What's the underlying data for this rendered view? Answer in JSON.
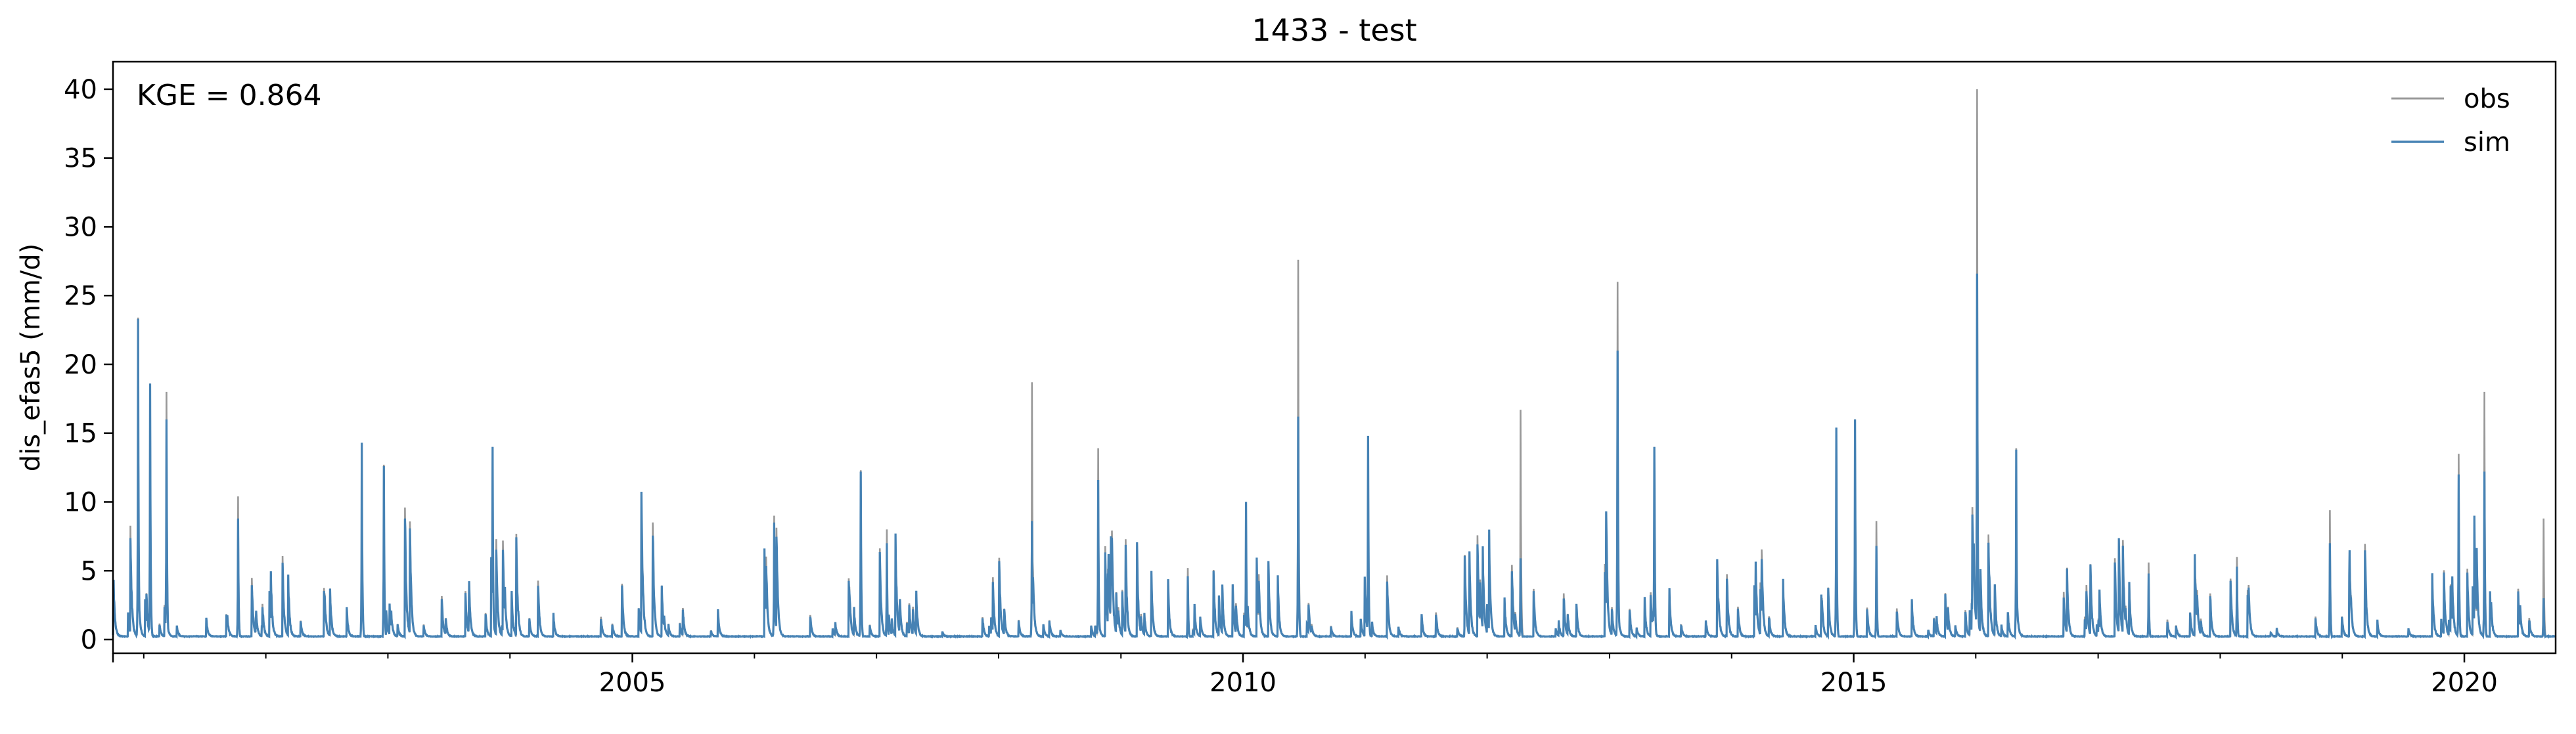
{
  "chart_data": {
    "type": "line",
    "title": "1433 - test",
    "ylabel": "dis_efas5 (mm/d)",
    "xlabel": "",
    "annotation": "KGE = 0.864",
    "xlim": [
      "2000-10-01",
      "2020-09-30"
    ],
    "ylim": [
      -1,
      42
    ],
    "yticks": [
      0,
      5,
      10,
      15,
      20,
      25,
      30,
      35,
      40
    ],
    "xticks": [
      "2005-01-01",
      "2010-01-01",
      "2015-01-01",
      "2020-01-01"
    ],
    "xtick_labels": [
      "2005",
      "2010",
      "2015",
      "2020"
    ],
    "grid": false,
    "legend": {
      "position": "top-right"
    },
    "series": [
      {
        "name": "obs",
        "color": "#999999",
        "peaks": [
          {
            "date": "2000-12-15",
            "value": 23.4
          },
          {
            "date": "2001-01-20",
            "value": 18.6
          },
          {
            "date": "2001-03-10",
            "value": 18.0
          },
          {
            "date": "2001-10-10",
            "value": 10.4
          },
          {
            "date": "2002-10-15",
            "value": 13.5
          },
          {
            "date": "2002-12-20",
            "value": 12.7
          },
          {
            "date": "2003-11-10",
            "value": 14.0
          },
          {
            "date": "2006-03-01",
            "value": 9.0
          },
          {
            "date": "2006-11-15",
            "value": 12.3
          },
          {
            "date": "2007-02-01",
            "value": 8.0
          },
          {
            "date": "2008-04-10",
            "value": 18.7
          },
          {
            "date": "2008-10-25",
            "value": 13.9
          },
          {
            "date": "2009-07-20",
            "value": 5.2
          },
          {
            "date": "2010-01-10",
            "value": 9.5
          },
          {
            "date": "2010-06-15",
            "value": 27.6
          },
          {
            "date": "2011-01-10",
            "value": 14.6
          },
          {
            "date": "2012-04-10",
            "value": 16.7
          },
          {
            "date": "2013-01-25",
            "value": 26.0
          },
          {
            "date": "2013-05-15",
            "value": 14.0
          },
          {
            "date": "2014-11-10",
            "value": 15.4
          },
          {
            "date": "2015-01-05",
            "value": 16.0
          },
          {
            "date": "2015-03-10",
            "value": 8.6
          },
          {
            "date": "2016-01-05",
            "value": 40.0
          },
          {
            "date": "2016-05-01",
            "value": 13.9
          },
          {
            "date": "2017-06-01",
            "value": 5.6
          },
          {
            "date": "2018-02-20",
            "value": 6.0
          },
          {
            "date": "2018-11-25",
            "value": 9.4
          },
          {
            "date": "2019-12-15",
            "value": 13.5
          },
          {
            "date": "2020-03-01",
            "value": 18.0
          },
          {
            "date": "2020-08-25",
            "value": 8.8
          }
        ]
      },
      {
        "name": "sim",
        "color": "#4682b4",
        "peaks": [
          {
            "date": "2000-12-15",
            "value": 23.3
          },
          {
            "date": "2001-01-20",
            "value": 18.6
          },
          {
            "date": "2001-03-10",
            "value": 16.0
          },
          {
            "date": "2001-10-10",
            "value": 8.8
          },
          {
            "date": "2002-10-15",
            "value": 14.3
          },
          {
            "date": "2002-12-20",
            "value": 12.6
          },
          {
            "date": "2003-11-10",
            "value": 14.0
          },
          {
            "date": "2006-03-01",
            "value": 8.5
          },
          {
            "date": "2006-11-15",
            "value": 12.2
          },
          {
            "date": "2007-02-01",
            "value": 7.0
          },
          {
            "date": "2008-04-10",
            "value": 8.6
          },
          {
            "date": "2008-10-25",
            "value": 11.6
          },
          {
            "date": "2009-07-20",
            "value": 4.6
          },
          {
            "date": "2010-01-10",
            "value": 10.0
          },
          {
            "date": "2010-06-15",
            "value": 16.2
          },
          {
            "date": "2011-01-10",
            "value": 14.8
          },
          {
            "date": "2012-04-10",
            "value": 5.9
          },
          {
            "date": "2013-01-25",
            "value": 21.0
          },
          {
            "date": "2013-05-15",
            "value": 14.0
          },
          {
            "date": "2014-11-10",
            "value": 15.4
          },
          {
            "date": "2015-01-05",
            "value": 16.0
          },
          {
            "date": "2015-03-10",
            "value": 6.8
          },
          {
            "date": "2016-01-05",
            "value": 26.6
          },
          {
            "date": "2016-05-01",
            "value": 13.8
          },
          {
            "date": "2017-06-01",
            "value": 4.8
          },
          {
            "date": "2018-02-20",
            "value": 5.3
          },
          {
            "date": "2018-11-25",
            "value": 7.0
          },
          {
            "date": "2019-12-15",
            "value": 12.0
          },
          {
            "date": "2020-03-01",
            "value": 12.2
          },
          {
            "date": "2020-08-25",
            "value": 3.0
          }
        ]
      }
    ]
  }
}
